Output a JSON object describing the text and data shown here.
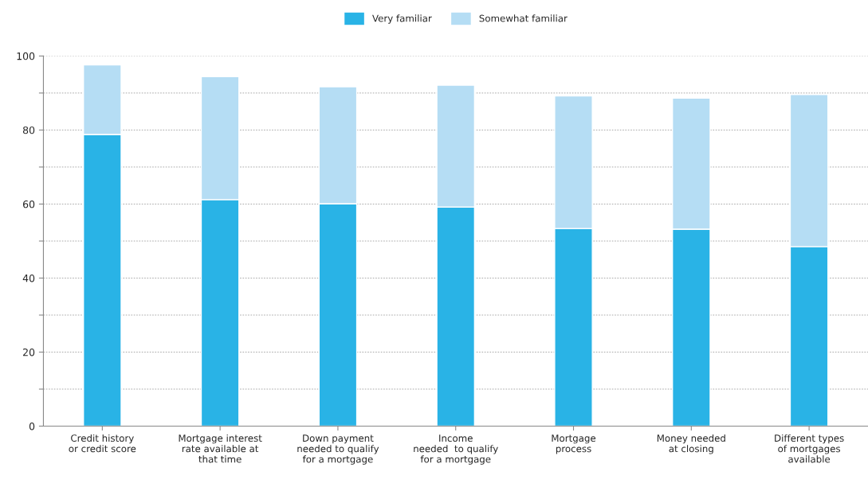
{
  "chart_data": {
    "type": "bar",
    "stacked": true,
    "categories": [
      "Credit history\nor credit score",
      "Mortgage interest\nrate available at\nthat time",
      "Down payment\nneeded to qualify\nfor a mortgage",
      "Income\nneeded  to qualify\nfor a mortgage",
      "Mortgage\nprocess",
      "Money needed\nat closing",
      "Different types\nof mortgages\navailable"
    ],
    "series": [
      {
        "name": "Very familiar",
        "color": "#29b3e6",
        "values": [
          78.8,
          61.2,
          60.1,
          59.2,
          53.4,
          53.2,
          48.5
        ]
      },
      {
        "name": "Somewhat familiar",
        "color": "#b5ddf4",
        "values": [
          18.8,
          33.2,
          31.6,
          32.9,
          35.8,
          35.4,
          41.1
        ]
      }
    ],
    "ylim": [
      0,
      100
    ],
    "yticks": [
      0,
      {
        "value": 10,
        "label": null
      },
      20,
      {
        "value": 30,
        "label": null
      },
      40,
      {
        "value": 50,
        "label": null
      },
      60,
      {
        "value": 70,
        "label": null
      },
      80,
      {
        "value": 90,
        "label": null
      },
      100
    ],
    "grid": "y",
    "legend": "top"
  }
}
